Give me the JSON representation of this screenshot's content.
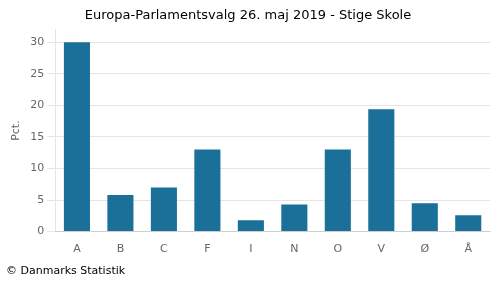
{
  "chart_data": {
    "type": "bar",
    "title": "Europa-Parlamentsvalg 26. maj 2019 - Stige Skole",
    "categories": [
      "A",
      "B",
      "C",
      "F",
      "I",
      "N",
      "O",
      "V",
      "Ø",
      "Å"
    ],
    "values": [
      30.0,
      5.8,
      7.0,
      13.0,
      1.8,
      4.3,
      13.0,
      19.4,
      4.5,
      2.6
    ],
    "color": "#1a7099",
    "ylabel": "Pct.",
    "ylim": [
      0,
      32
    ],
    "yticks": [
      0,
      5,
      10,
      15,
      20,
      25,
      30
    ],
    "grid": true,
    "footer": "© Danmarks Statistik"
  }
}
